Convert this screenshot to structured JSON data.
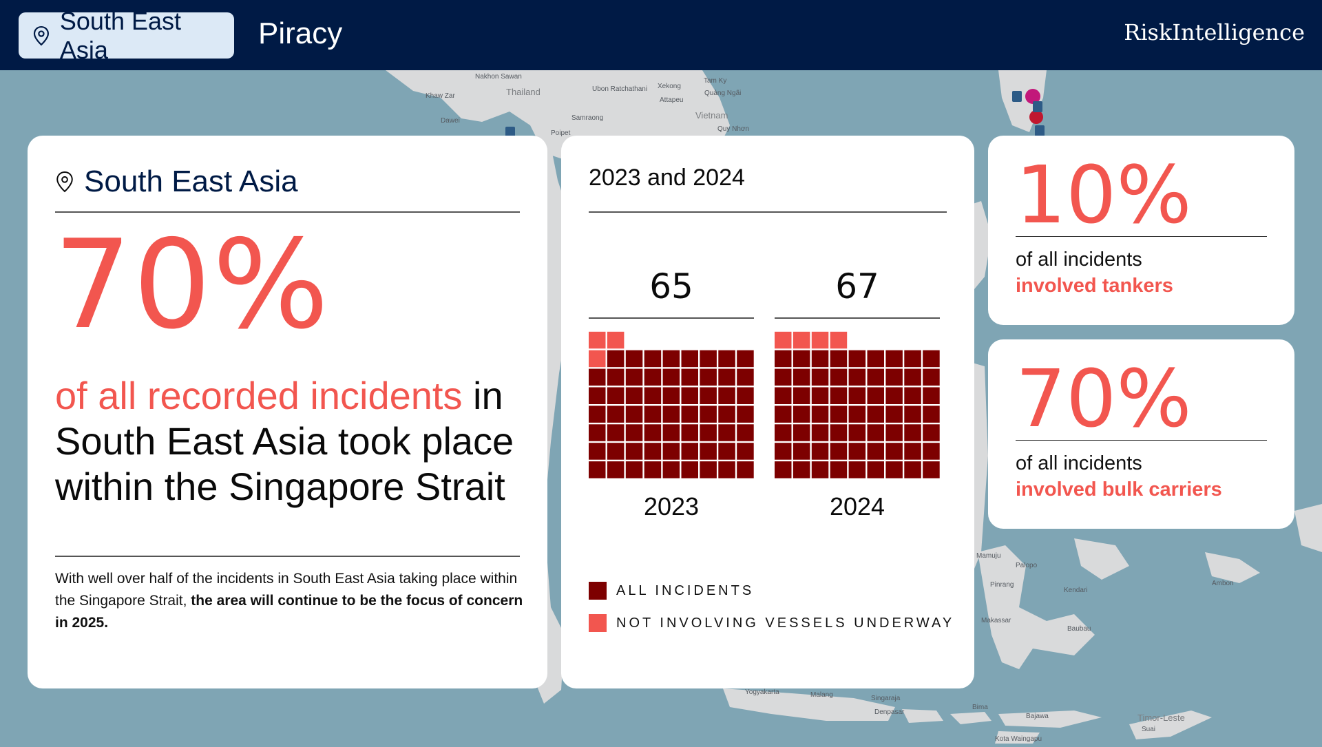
{
  "header": {
    "region_label": "South East Asia",
    "title": "Piracy",
    "brand": "RiskIntelligence"
  },
  "map": {
    "labels": {
      "thailand": "Thailand",
      "vietnam": "Vietnam",
      "nakhon_sawan": "Nakhon Sawan",
      "ubon": "Ubon Ratchathani",
      "xekong": "Xekong",
      "attapeu": "Attapeu",
      "tam_ky": "Tam Ky",
      "quang_ngai": "Quảng Ngãi",
      "quy_nhon": "Quy Nhơn",
      "khaw_zar": "Khaw Zar",
      "dawei": "Dawei",
      "samraong": "Samraong",
      "poipet": "Poipet",
      "yogyakarta": "Yogyakarta",
      "malang": "Malang",
      "singaraja": "Singaraja",
      "denpasar": "Denpasar",
      "bima": "Bima",
      "bajawa": "Bajawa",
      "timor_leste": "Timor-Leste",
      "suai": "Suai",
      "kota_waingapu": "Kota Waingapu",
      "palopo": "Palopo",
      "pinrang": "Pinrang",
      "makassar": "Makassar",
      "kendari": "Kendari",
      "baubau": "Baubau",
      "ambon": "Ambon",
      "mamuju": "Mamuju"
    }
  },
  "summary_card": {
    "region_title": "South East Asia",
    "percentage": "70%",
    "statement_highlight": "of all recorded incidents",
    "statement_rest": " in South East Asia took place within the Singapore Strait",
    "note_plain": "With well over half of the incidents in South East Asia taking place within the Singapore Strait, ",
    "note_bold": "the area will continue to be the focus of concern in 2025."
  },
  "chart_card": {
    "title": "2023 and 2024",
    "legend": {
      "all": "ALL INCIDENTS",
      "not_underway": "NOT INVOLVING VESSELS UNDERWAY"
    }
  },
  "chart_data": {
    "type": "waffle",
    "title": "2023 and 2024",
    "categories": [
      "2023",
      "2024"
    ],
    "totals": [
      "65",
      "67"
    ],
    "series": [
      {
        "name": "ALL INCIDENTS",
        "values": [
          65,
          67
        ],
        "color": "#7d0000"
      },
      {
        "name": "NOT INVOLVING VESSELS UNDERWAY",
        "values": [
          3,
          4
        ],
        "color": "#f2564f"
      }
    ],
    "grid_columns": 9
  },
  "stats": [
    {
      "percentage": "10%",
      "line1": "of all incidents",
      "line2": "involved tankers"
    },
    {
      "percentage": "70%",
      "line1": "of all incidents",
      "line2": "involved bulk carriers"
    }
  ],
  "colors": {
    "header_bg": "#001a45",
    "accent": "#f2564f",
    "dark_red": "#7d0000",
    "pill_bg": "#dce9f6"
  }
}
